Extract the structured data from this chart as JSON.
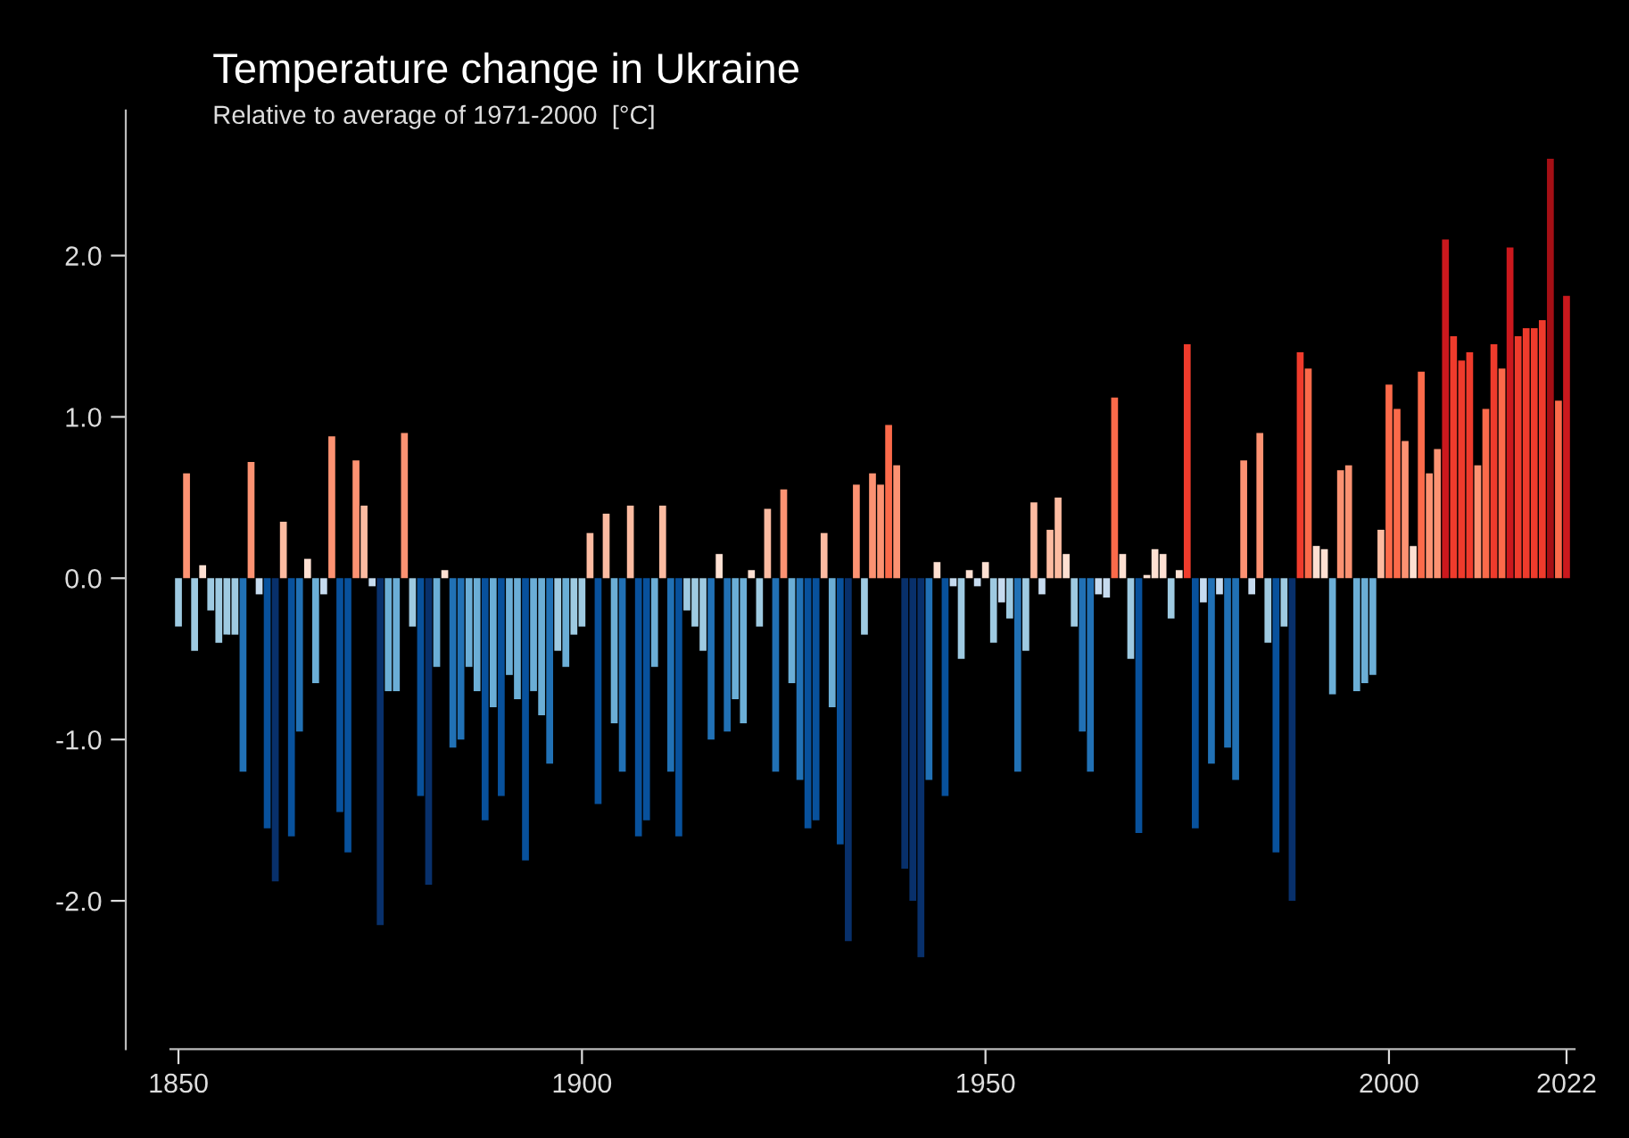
{
  "chart_data": {
    "type": "bar",
    "title": "Temperature change in Ukraine",
    "subtitle": "Relative to average of 1971-2000  [°C]",
    "x": [
      1850,
      1851,
      1852,
      1853,
      1854,
      1855,
      1856,
      1857,
      1858,
      1859,
      1860,
      1861,
      1862,
      1863,
      1864,
      1865,
      1866,
      1867,
      1868,
      1869,
      1870,
      1871,
      1872,
      1873,
      1874,
      1875,
      1876,
      1877,
      1878,
      1879,
      1880,
      1881,
      1882,
      1883,
      1884,
      1885,
      1886,
      1887,
      1888,
      1889,
      1890,
      1891,
      1892,
      1893,
      1894,
      1895,
      1896,
      1897,
      1898,
      1899,
      1900,
      1901,
      1902,
      1903,
      1904,
      1905,
      1906,
      1907,
      1908,
      1909,
      1910,
      1911,
      1912,
      1913,
      1914,
      1915,
      1916,
      1917,
      1918,
      1919,
      1920,
      1921,
      1922,
      1923,
      1924,
      1925,
      1926,
      1927,
      1928,
      1929,
      1930,
      1931,
      1932,
      1933,
      1934,
      1935,
      1936,
      1937,
      1938,
      1939,
      1940,
      1941,
      1942,
      1943,
      1944,
      1945,
      1946,
      1947,
      1948,
      1949,
      1950,
      1951,
      1952,
      1953,
      1954,
      1955,
      1956,
      1957,
      1958,
      1959,
      1960,
      1961,
      1962,
      1963,
      1964,
      1965,
      1966,
      1967,
      1968,
      1969,
      1970,
      1971,
      1972,
      1973,
      1974,
      1975,
      1976,
      1977,
      1978,
      1979,
      1980,
      1981,
      1982,
      1983,
      1984,
      1985,
      1986,
      1987,
      1988,
      1989,
      1990,
      1991,
      1992,
      1993,
      1994,
      1995,
      1996,
      1997,
      1998,
      1999,
      2000,
      2001,
      2002,
      2003,
      2004,
      2005,
      2006,
      2007,
      2008,
      2009,
      2010,
      2011,
      2012,
      2013,
      2014,
      2015,
      2016,
      2017,
      2018,
      2019,
      2020,
      2021,
      2022
    ],
    "values": [
      -0.3,
      0.65,
      -0.45,
      0.08,
      -0.2,
      -0.4,
      -0.35,
      -0.35,
      -1.2,
      0.72,
      -0.1,
      -1.55,
      -1.88,
      0.35,
      -1.6,
      -0.95,
      0.12,
      -0.65,
      -0.1,
      0.88,
      -1.45,
      -1.7,
      0.73,
      0.45,
      -0.05,
      -2.15,
      -0.7,
      -0.7,
      0.9,
      -0.3,
      -1.35,
      -1.9,
      -0.55,
      0.05,
      -1.05,
      -1.0,
      -0.55,
      -0.7,
      -1.5,
      -0.8,
      -1.35,
      -0.6,
      -0.75,
      -1.75,
      -0.7,
      -0.85,
      -1.15,
      -0.45,
      -0.55,
      -0.35,
      -0.3,
      0.28,
      -1.4,
      0.4,
      -0.9,
      -1.2,
      0.45,
      -1.6,
      -1.5,
      -0.55,
      0.45,
      -1.2,
      -1.6,
      -0.2,
      -0.3,
      -0.45,
      -1.0,
      0.15,
      -0.95,
      -0.75,
      -0.9,
      0.05,
      -0.3,
      0.43,
      -1.2,
      0.55,
      -0.65,
      -1.25,
      -1.55,
      -1.5,
      0.28,
      -0.8,
      -1.65,
      -2.25,
      0.58,
      -0.35,
      0.65,
      0.58,
      0.95,
      0.7,
      -1.8,
      -2.0,
      -2.35,
      -1.25,
      0.1,
      -1.35,
      -0.05,
      -0.5,
      0.05,
      -0.05,
      0.1,
      -0.4,
      -0.15,
      -0.25,
      -1.2,
      -0.45,
      0.47,
      -0.1,
      0.3,
      0.5,
      0.15,
      -0.3,
      -0.95,
      -1.2,
      -0.1,
      -0.12,
      1.12,
      0.15,
      -0.5,
      -1.58,
      0.02,
      0.18,
      0.15,
      -0.25,
      0.05,
      1.45,
      -1.55,
      -0.15,
      -1.15,
      -0.1,
      -1.05,
      -1.25,
      0.73,
      -0.1,
      0.9,
      -0.4,
      -1.7,
      -0.3,
      -2.0,
      1.4,
      1.3,
      0.2,
      0.18,
      -0.72,
      0.67,
      0.7,
      -0.7,
      -0.65,
      -0.6,
      0.3,
      1.2,
      1.05,
      0.85,
      0.2,
      1.28,
      0.65,
      0.8,
      2.1,
      1.5,
      1.35,
      1.4,
      0.7,
      1.05,
      1.45,
      1.3,
      2.05,
      1.5,
      1.55,
      1.55,
      1.6,
      2.6,
      1.1,
      1.75
    ],
    "colors": [
      "#9ecae1",
      "#fc9272",
      "#9ecae1",
      "#fee0d2",
      "#9ecae1",
      "#9ecae1",
      "#9ecae1",
      "#9ecae1",
      "#2171b5",
      "#fc9272",
      "#c6dbef",
      "#08519c",
      "#08306b",
      "#fcbba1",
      "#08519c",
      "#2171b5",
      "#fee0d2",
      "#6baed6",
      "#c6dbef",
      "#fc9272",
      "#08519c",
      "#08519c",
      "#fc9272",
      "#fcbba1",
      "#c6dbef",
      "#08306b",
      "#6baed6",
      "#6baed6",
      "#fc9272",
      "#9ecae1",
      "#08519c",
      "#08306b",
      "#6baed6",
      "#fee0d2",
      "#2171b5",
      "#2171b5",
      "#6baed6",
      "#6baed6",
      "#08519c",
      "#6baed6",
      "#08519c",
      "#6baed6",
      "#6baed6",
      "#08519c",
      "#6baed6",
      "#6baed6",
      "#2171b5",
      "#9ecae1",
      "#6baed6",
      "#9ecae1",
      "#9ecae1",
      "#fcbba1",
      "#08519c",
      "#fcbba1",
      "#6baed6",
      "#2171b5",
      "#fcbba1",
      "#08519c",
      "#08519c",
      "#6baed6",
      "#fcbba1",
      "#2171b5",
      "#08519c",
      "#9ecae1",
      "#9ecae1",
      "#9ecae1",
      "#2171b5",
      "#fee0d2",
      "#2171b5",
      "#6baed6",
      "#6baed6",
      "#fee0d2",
      "#9ecae1",
      "#fcbba1",
      "#2171b5",
      "#fc9272",
      "#6baed6",
      "#2171b5",
      "#08519c",
      "#08519c",
      "#fcbba1",
      "#6baed6",
      "#08519c",
      "#08306b",
      "#fc9272",
      "#9ecae1",
      "#fc9272",
      "#fc9272",
      "#fb6a4a",
      "#fc9272",
      "#08306b",
      "#08306b",
      "#08306b",
      "#2171b5",
      "#fee0d2",
      "#08519c",
      "#c6dbef",
      "#9ecae1",
      "#fee0d2",
      "#c6dbef",
      "#fee0d2",
      "#9ecae1",
      "#c6dbef",
      "#9ecae1",
      "#2171b5",
      "#9ecae1",
      "#fcbba1",
      "#c6dbef",
      "#fcbba1",
      "#fcbba1",
      "#fee0d2",
      "#9ecae1",
      "#2171b5",
      "#2171b5",
      "#c6dbef",
      "#c6dbef",
      "#fb6a4a",
      "#fee0d2",
      "#9ecae1",
      "#08519c",
      "#fee0d2",
      "#fee0d2",
      "#fee0d2",
      "#9ecae1",
      "#fee0d2",
      "#ef3b2c",
      "#08519c",
      "#c6dbef",
      "#2171b5",
      "#c6dbef",
      "#2171b5",
      "#2171b5",
      "#fc9272",
      "#c6dbef",
      "#fc9272",
      "#9ecae1",
      "#08519c",
      "#9ecae1",
      "#08306b",
      "#ef3b2c",
      "#fb6a4a",
      "#fee0d2",
      "#fee0d2",
      "#6baed6",
      "#fc9272",
      "#fc9272",
      "#6baed6",
      "#6baed6",
      "#6baed6",
      "#fcbba1",
      "#fb6a4a",
      "#fb6a4a",
      "#fc9272",
      "#fee0d2",
      "#fb6a4a",
      "#fc9272",
      "#fc9272",
      "#cb181d",
      "#ef3b2c",
      "#ef3b2c",
      "#ef3b2c",
      "#fc9272",
      "#fb6a4a",
      "#ef3b2c",
      "#fb6a4a",
      "#cb181d",
      "#ef3b2c",
      "#ef3b2c",
      "#ef3b2c",
      "#ef3b2c",
      "#a50f15",
      "#fb6a4a",
      "#cb181d"
    ],
    "xlim": [
      1849,
      2023
    ],
    "xticks": [
      1850,
      1900,
      1950,
      2000,
      2022
    ],
    "ylim": [
      -2.92,
      2.9
    ],
    "yticks": [
      {
        "value": 2,
        "label": "2.0"
      },
      {
        "value": 1,
        "label": "1.0"
      },
      {
        "value": 0,
        "label": "0.0"
      },
      {
        "value": -1,
        "label": "-1.0"
      },
      {
        "value": -2,
        "label": "-2.0"
      }
    ],
    "grid": false,
    "legend": false
  }
}
